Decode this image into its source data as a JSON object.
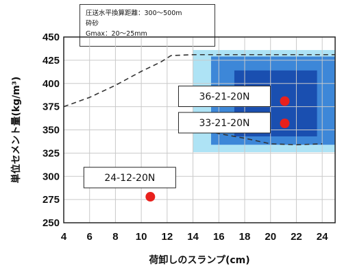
{
  "note": {
    "lines": [
      "圧送水平換算距離：300～500m",
      "砕砂",
      "Gmax：20～25mm"
    ]
  },
  "chart_data": {
    "type": "scatter",
    "xlabel": "荷卸しのスランプ(cm)",
    "ylabel": "単位セメント量(kg/m³)",
    "xlim": [
      4,
      25
    ],
    "ylim": [
      250,
      450
    ],
    "x_ticks": [
      4,
      6,
      8,
      10,
      12,
      14,
      16,
      18,
      20,
      22,
      24
    ],
    "y_ticks": [
      250,
      275,
      300,
      325,
      350,
      375,
      400,
      425,
      450
    ],
    "grid": true,
    "points": [
      {
        "label": "36-21-20N",
        "x": 21.1,
        "y": 381,
        "color": "#e8201c"
      },
      {
        "label": "33-21-20N",
        "x": 21.1,
        "y": 357,
        "color": "#e8201c"
      },
      {
        "label": "24-12-20N",
        "x": 10.7,
        "y": 278,
        "color": "#e8201c"
      }
    ],
    "boundary_line": {
      "style": "dashed",
      "points": [
        [
          4,
          375
        ],
        [
          6,
          385
        ],
        [
          8,
          398
        ],
        [
          10,
          413
        ],
        [
          11.5,
          423
        ],
        [
          12.3,
          430
        ],
        [
          14,
          431
        ],
        [
          25,
          431
        ]
      ]
    },
    "boundary_line_lower": {
      "style": "dashed",
      "points": [
        [
          14.5,
          352
        ],
        [
          16,
          346
        ],
        [
          18,
          341
        ],
        [
          20,
          335
        ],
        [
          22,
          334
        ],
        [
          24,
          335
        ]
      ]
    },
    "shaded_regions": [
      {
        "color": "#aee3f5",
        "x": [
          14,
          25
        ],
        "y": [
          326,
          436
        ]
      },
      {
        "color": "#3d87d8",
        "x": [
          15.4,
          25
        ],
        "y": [
          334,
          429
        ]
      },
      {
        "color": "#1a4fb0",
        "x": [
          17.2,
          23.6
        ],
        "y": [
          343,
          414
        ]
      }
    ]
  }
}
